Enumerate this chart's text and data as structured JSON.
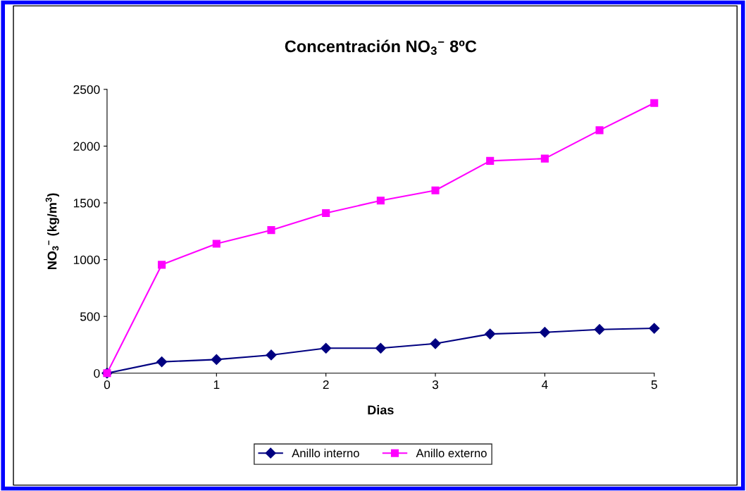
{
  "chart_data": {
    "type": "line",
    "title": "Concentración NO$_{3}$$^{−}$ 8ºC",
    "xlabel": "Dias",
    "ylabel": "NO$_{3}$$^{−}$ (kg/m$^{3}$)",
    "x": [
      0,
      0.5,
      1,
      1.5,
      2,
      2.5,
      3,
      3.5,
      4,
      4.5,
      5
    ],
    "series": [
      {
        "name": "Anillo interno",
        "color": "#000080",
        "marker": "diamond",
        "values": [
          0,
          100,
          120,
          160,
          220,
          220,
          260,
          345,
          360,
          385,
          395
        ]
      },
      {
        "name": "Anillo externo",
        "color": "#ff00ff",
        "marker": "square",
        "values": [
          0,
          955,
          1140,
          1260,
          1410,
          1520,
          1610,
          1870,
          1890,
          2140,
          2380
        ]
      }
    ],
    "xlim": [
      0,
      5
    ],
    "xticks": [
      0,
      1,
      2,
      3,
      4,
      5
    ],
    "ylim": [
      0,
      2500
    ],
    "yticks": [
      0,
      500,
      1000,
      1500,
      2000,
      2500
    ],
    "grid": false,
    "legend": "bottom",
    "line_style": "solid"
  }
}
